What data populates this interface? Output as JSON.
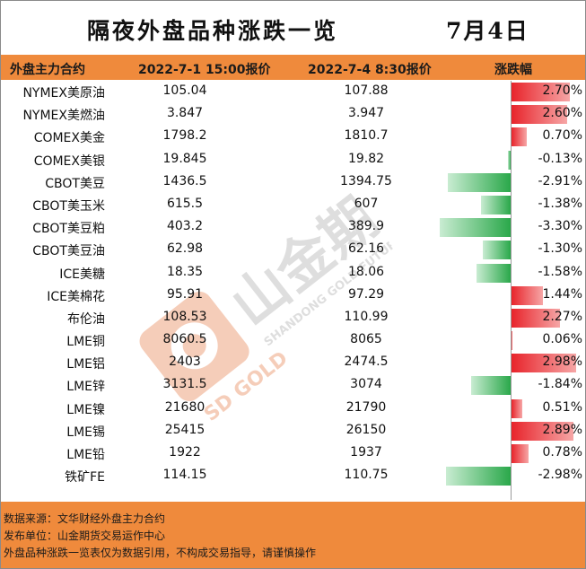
{
  "title": "隔夜外盘品种涨跌一览",
  "date": "7月4日",
  "watermark": {
    "brand": "山金期货",
    "latin": "SHANDONG GOLD FUTURES",
    "gold": "SD GOLD"
  },
  "table": {
    "headers": [
      "外盘主力合约",
      "2022-7-1 15:00报价",
      "2022-7-4 8:30报价",
      "涨跌幅"
    ],
    "rows": [
      {
        "name": "NYMEX美原油",
        "p1": "105.04",
        "p2": "107.88",
        "pct": "2.70%",
        "change": 2.7
      },
      {
        "name": "NYMEX美燃油",
        "p1": "3.847",
        "p2": "3.947",
        "pct": "2.60%",
        "change": 2.6
      },
      {
        "name": "COMEX美金",
        "p1": "1798.2",
        "p2": "1810.7",
        "pct": "0.70%",
        "change": 0.7
      },
      {
        "name": "COMEX美银",
        "p1": "19.845",
        "p2": "19.82",
        "pct": "-0.13%",
        "change": -0.13
      },
      {
        "name": "CBOT美豆",
        "p1": "1436.5",
        "p2": "1394.75",
        "pct": "-2.91%",
        "change": -2.91
      },
      {
        "name": "CBOT美玉米",
        "p1": "615.5",
        "p2": "607",
        "pct": "-1.38%",
        "change": -1.38
      },
      {
        "name": "CBOT美豆粕",
        "p1": "403.2",
        "p2": "389.9",
        "pct": "-3.30%",
        "change": -3.3
      },
      {
        "name": "CBOT美豆油",
        "p1": "62.98",
        "p2": "62.16",
        "pct": "-1.30%",
        "change": -1.3
      },
      {
        "name": "ICE美糖",
        "p1": "18.35",
        "p2": "18.06",
        "pct": "-1.58%",
        "change": -1.58
      },
      {
        "name": "ICE美棉花",
        "p1": "95.91",
        "p2": "97.29",
        "pct": "1.44%",
        "change": 1.44
      },
      {
        "name": "布伦油",
        "p1": "108.53",
        "p2": "110.99",
        "pct": "2.27%",
        "change": 2.27
      },
      {
        "name": "LME铜",
        "p1": "8060.5",
        "p2": "8065",
        "pct": "0.06%",
        "change": 0.06
      },
      {
        "name": "LME铝",
        "p1": "2403",
        "p2": "2474.5",
        "pct": "2.98%",
        "change": 2.98
      },
      {
        "name": "LME锌",
        "p1": "3131.5",
        "p2": "3074",
        "pct": "-1.84%",
        "change": -1.84
      },
      {
        "name": "LME镍",
        "p1": "21680",
        "p2": "21790",
        "pct": "0.51%",
        "change": 0.51
      },
      {
        "name": "LME锡",
        "p1": "25415",
        "p2": "26150",
        "pct": "2.89%",
        "change": 2.89
      },
      {
        "name": "LME铅",
        "p1": "1922",
        "p2": "1937",
        "pct": "0.78%",
        "change": 0.78
      },
      {
        "name": "铁矿FE",
        "p1": "114.15",
        "p2": "110.75",
        "pct": "-2.98%",
        "change": -2.98
      }
    ]
  },
  "colors": {
    "accent_orange": "#ef8a3c",
    "up_red": "#e8242b",
    "down_green": "#2aa84a"
  },
  "footer": {
    "source": "数据来源：文华财经外盘主力合约",
    "publisher": "发布单位：山金期货交易运作中心",
    "disclaimer": "外盘品种涨跌一览表仅为数据引用，不构成交易指导，请谨慎操作"
  }
}
